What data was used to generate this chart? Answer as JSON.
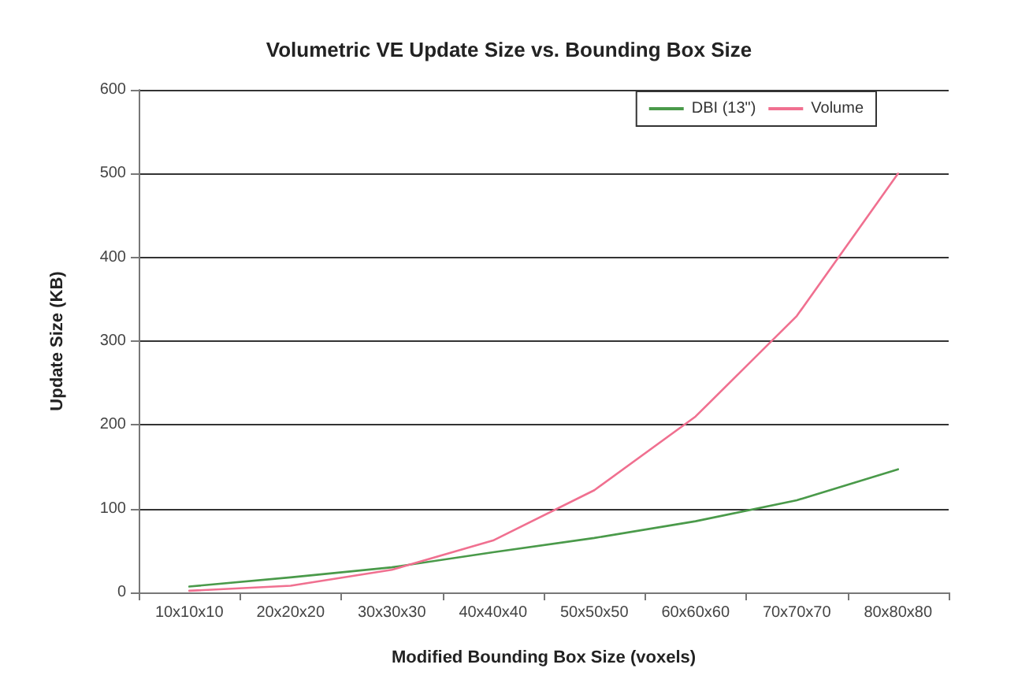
{
  "chart_data": {
    "type": "line",
    "title": "Volumetric VE Update Size vs. Bounding Box Size",
    "xlabel": "Modified Bounding Box Size (voxels)",
    "ylabel": "Update Size (KB)",
    "categories": [
      "10x10x10",
      "20x20x20",
      "30x30x30",
      "40x40x40",
      "50x50x50",
      "60x60x60",
      "70x70x70",
      "80x80x80"
    ],
    "series": [
      {
        "name": "DBI (13\")",
        "color": "#4a9a4a",
        "values": [
          7,
          18,
          30,
          48,
          65,
          85,
          110,
          147
        ]
      },
      {
        "name": "Volume",
        "color": "#f07090",
        "values": [
          2,
          8,
          27,
          62,
          122,
          210,
          330,
          500
        ]
      }
    ],
    "ylim": [
      0,
      600
    ],
    "yticks": [
      0,
      100,
      200,
      300,
      400,
      500,
      600
    ],
    "grid": "y",
    "legend": "top right",
    "marker": "none",
    "line_style": "solid"
  }
}
